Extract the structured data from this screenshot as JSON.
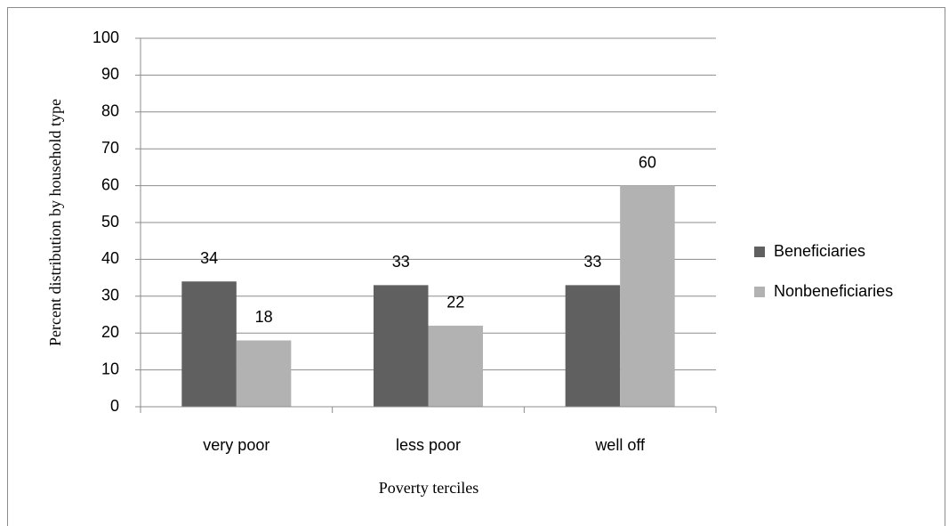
{
  "chart_data": {
    "type": "bar",
    "x_label": "Poverty terciles",
    "y_label": "Percent distribution by household type",
    "categories": [
      "very poor",
      "less poor",
      "well off"
    ],
    "series": [
      {
        "name": "Beneficiaries",
        "color": "#606060",
        "values": [
          34,
          33,
          33
        ]
      },
      {
        "name": "Nonbeneficiaries",
        "color": "#b2b2b2",
        "values": [
          18,
          22,
          60
        ]
      }
    ],
    "ylim": [
      0,
      100
    ],
    "yticks": [
      0,
      10,
      20,
      30,
      40,
      50,
      60,
      70,
      80,
      90,
      100
    ],
    "grid": true,
    "legend": "right",
    "data_labels": true
  }
}
